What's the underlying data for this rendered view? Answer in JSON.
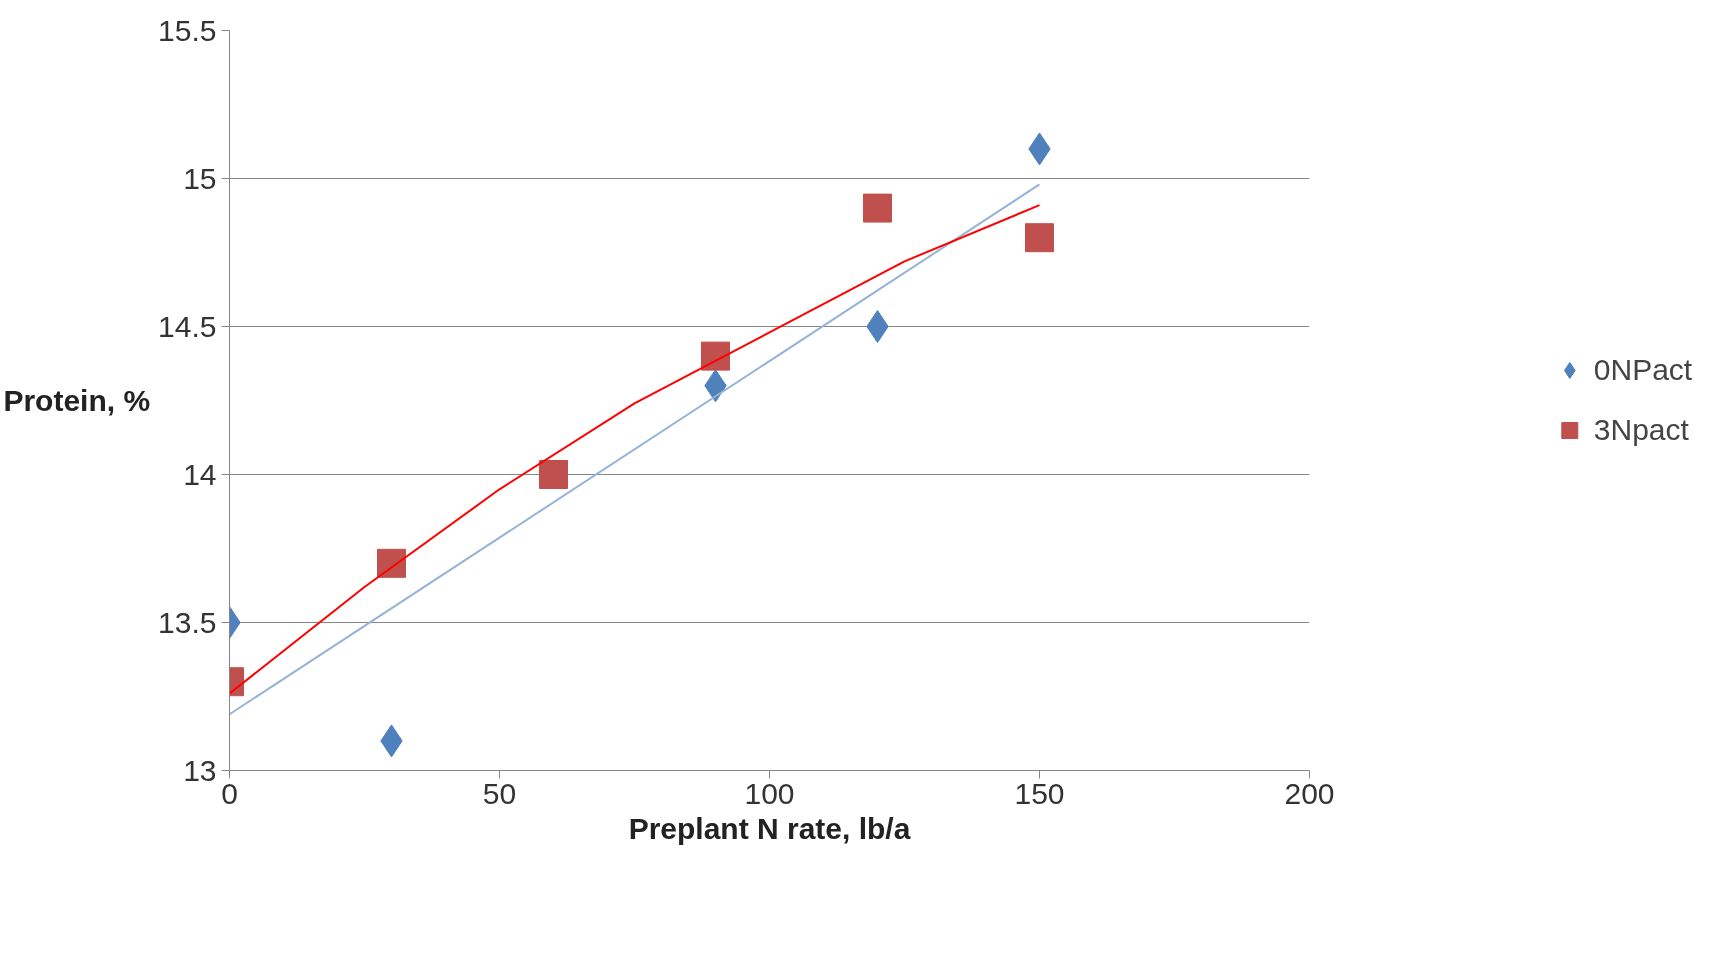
{
  "chart_data": {
    "type": "scatter",
    "xlabel": "Preplant N rate, lb/a",
    "ylabel": "Protein, %",
    "xlim": [
      0,
      200
    ],
    "xticks": [
      0,
      50,
      100,
      150,
      200
    ],
    "ylim": [
      13,
      15.5
    ],
    "yticks": [
      13,
      13.5,
      14,
      14.5,
      15,
      15.5
    ],
    "grid": "y",
    "legend": "right",
    "series": [
      {
        "name": "0NPact",
        "marker": "diamond",
        "color": "#4f81bd",
        "x": [
          0,
          30,
          90,
          120,
          150
        ],
        "values": [
          13.5,
          13.1,
          14.3,
          14.5,
          15.1
        ]
      },
      {
        "name": "3Npact",
        "marker": "square",
        "color": "#c0504d",
        "x": [
          0,
          30,
          60,
          90,
          120,
          150
        ],
        "values": [
          13.3,
          13.7,
          14.0,
          14.4,
          14.9,
          14.8
        ]
      },
      {
        "type": "line",
        "marker": "none",
        "color": "#95b3d7",
        "x": [
          0,
          150
        ],
        "values": [
          13.19,
          14.98
        ]
      },
      {
        "type": "line",
        "marker": "none",
        "color": "#ff0000",
        "x": [
          0,
          25,
          50,
          75,
          100,
          125,
          150
        ],
        "values": [
          13.26,
          13.62,
          13.95,
          14.24,
          14.48,
          14.72,
          14.91
        ]
      }
    ]
  }
}
